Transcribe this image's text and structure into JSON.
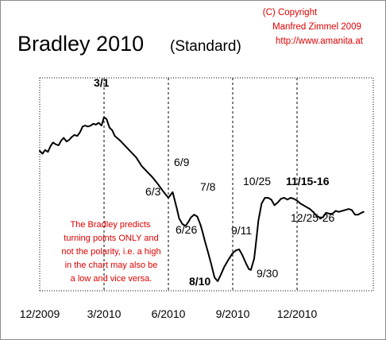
{
  "chart_data": {
    "type": "line",
    "title": "Bradley 2010",
    "subtitle": "(Standard)",
    "copyright": [
      "(C) Copyright",
      "Manfred Zimmel 2009",
      "http://www.amanita.at"
    ],
    "note": [
      "The Bradley predicts",
      "turning points ONLY and",
      "not the polarity, i.e. a high",
      "in the chart may also be",
      "a low and vice versa."
    ],
    "x_ticks": [
      {
        "label": "12/2009",
        "x": 0
      },
      {
        "label": "3/2010",
        "x": 3
      },
      {
        "label": "6/2010",
        "x": 6
      },
      {
        "label": "9/2010",
        "x": 9
      },
      {
        "label": "12/2010",
        "x": 12
      }
    ],
    "xlim": [
      0,
      15.1
    ],
    "ylim": [
      0,
      100
    ],
    "grid": "vertical dashed lines at 3/2010, 6/2010, 9/2010, 12/2010",
    "series": [
      {
        "color": "#000000",
        "x": [
          0.0,
          0.13,
          0.25,
          0.38,
          0.5,
          0.62,
          0.75,
          0.88,
          1.0,
          1.12,
          1.25,
          1.38,
          1.5,
          1.62,
          1.75,
          1.88,
          2.0,
          2.12,
          2.25,
          2.38,
          2.5,
          2.62,
          2.75,
          2.88,
          3.0,
          3.12,
          3.25,
          3.38,
          3.5,
          3.75,
          4.0,
          4.25,
          4.5,
          4.75,
          5.0,
          5.25,
          5.5,
          5.75,
          6.0,
          6.1,
          6.2,
          6.3,
          6.4,
          6.5,
          6.65,
          6.8,
          6.95,
          7.05,
          7.2,
          7.35,
          7.5,
          7.6,
          7.7,
          7.85,
          8.0,
          8.15,
          8.3,
          8.45,
          8.6,
          8.8,
          9.0,
          9.15,
          9.3,
          9.45,
          9.6,
          9.75,
          9.85,
          10.0,
          10.1,
          10.2,
          10.35,
          10.5,
          10.65,
          10.8,
          10.95,
          11.1,
          11.25,
          11.4,
          11.55,
          11.7,
          11.85,
          12.0,
          12.15,
          12.3,
          12.45,
          12.6,
          12.75,
          12.9,
          13.05,
          13.2,
          13.35,
          13.5,
          13.65,
          13.8,
          13.95,
          14.1,
          14.25,
          14.4,
          14.55,
          14.7,
          14.85,
          15.0,
          15.1
        ],
        "y": [
          69.5,
          68.0,
          70.0,
          69.0,
          72.0,
          74.0,
          73.0,
          72.5,
          75.0,
          76.5,
          74.5,
          75.5,
          77.0,
          78.0,
          77.5,
          79.5,
          82.5,
          83.0,
          82.5,
          83.0,
          84.0,
          83.5,
          84.5,
          83.0,
          87.5,
          86.5,
          82.0,
          80.5,
          77.5,
          75.0,
          72.0,
          69.0,
          66.0,
          61.5,
          58.5,
          55.5,
          52.0,
          48.0,
          44.5,
          46.0,
          47.5,
          43.0,
          38.5,
          33.5,
          30.5,
          29.5,
          32.0,
          34.0,
          35.5,
          34.5,
          30.0,
          26.0,
          21.5,
          15.5,
          9.0,
          2.0,
          0.0,
          3.5,
          7.5,
          11.5,
          15.0,
          16.5,
          17.0,
          14.0,
          10.0,
          6.5,
          6.0,
          12.0,
          22.0,
          32.5,
          41.5,
          44.5,
          44.5,
          43.5,
          40.5,
          42.0,
          44.0,
          44.5,
          43.5,
          44.5,
          44.0,
          43.0,
          41.5,
          40.5,
          39.5,
          38.5,
          37.0,
          35.0,
          34.0,
          34.0,
          36.5,
          36.0,
          36.0,
          37.5,
          37.0,
          37.5,
          38.0,
          38.5,
          38.0,
          35.5,
          35.5,
          36.5,
          37.0
        ]
      }
    ],
    "annotations": [
      {
        "text": "3/1",
        "bold": true
      },
      {
        "text": "6/9",
        "bold": false
      },
      {
        "text": "6/3",
        "bold": false
      },
      {
        "text": "7/8",
        "bold": false
      },
      {
        "text": "6/26",
        "bold": false
      },
      {
        "text": "9/11",
        "bold": false
      },
      {
        "text": "8/10",
        "bold": true
      },
      {
        "text": "9/30",
        "bold": false
      },
      {
        "text": "10/25",
        "bold": false
      },
      {
        "text": "11/15-16",
        "bold": true
      },
      {
        "text": "12/25-26",
        "bold": false
      }
    ]
  }
}
